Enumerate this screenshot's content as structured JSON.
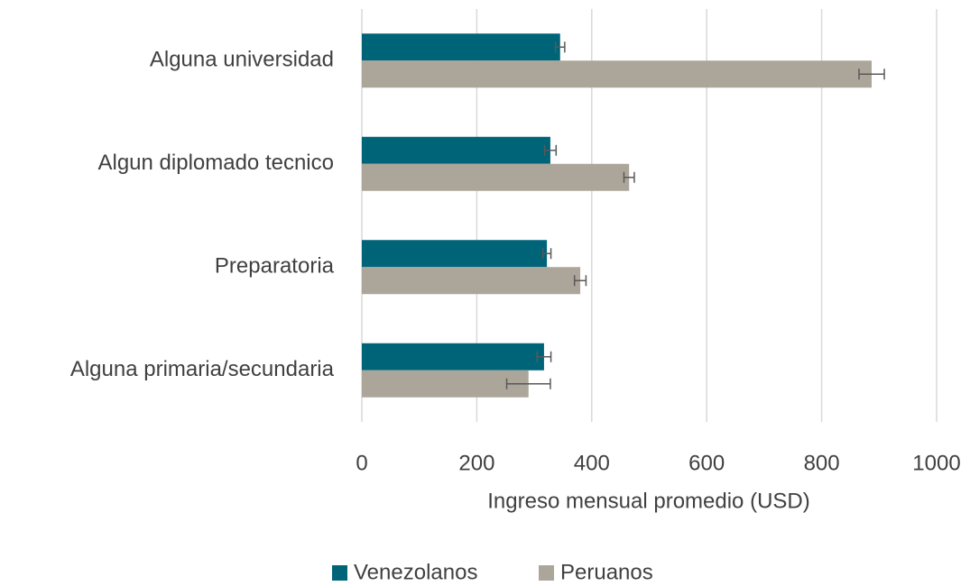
{
  "chart_data": {
    "type": "hbar",
    "categories": [
      "Alguna universidad",
      "Algun diplomado tecnico",
      "Preparatoria",
      "Alguna primaria/secundaria"
    ],
    "series": [
      {
        "name": "Venezolanos",
        "color": "#006479",
        "values": [
          345,
          328,
          322,
          317
        ],
        "errors": [
          8,
          10,
          7,
          12
        ]
      },
      {
        "name": "Peruanos",
        "color": "#aca59a",
        "values": [
          887,
          465,
          380,
          290
        ],
        "errors": [
          22,
          9,
          10,
          38
        ]
      }
    ],
    "xlabel": "Ingreso mensual promedio (USD)",
    "xlim": [
      0,
      1000
    ],
    "xticks": [
      0,
      200,
      400,
      600,
      800,
      1000
    ],
    "grid": true,
    "legend": "bottom"
  }
}
